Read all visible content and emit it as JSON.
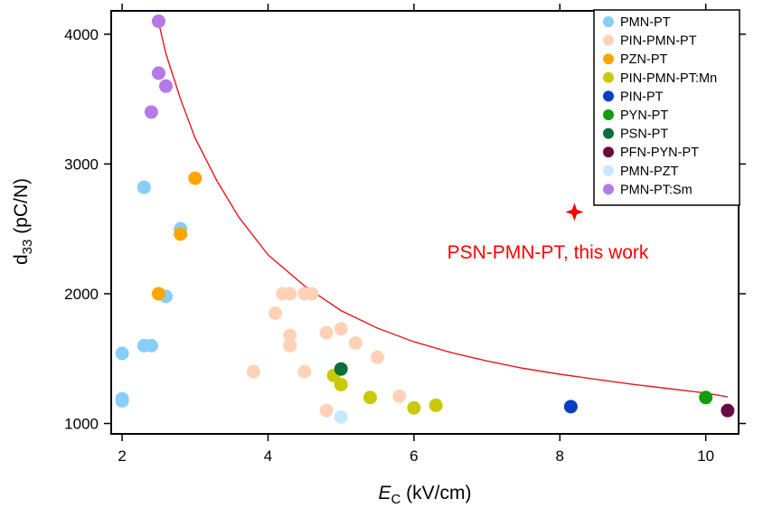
{
  "chart_data": {
    "type": "scatter",
    "xlabel_main": "E",
    "xlabel_sub": "C",
    "xlabel_unit": " (kV/cm)",
    "ylabel_main": "d",
    "ylabel_sub": "33",
    "ylabel_unit": " (pC/N)",
    "xlim": [
      1.85,
      10.45
    ],
    "ylim": [
      920,
      4180
    ],
    "xticks": [
      2,
      4,
      6,
      8,
      10
    ],
    "yticks": [
      1000,
      2000,
      3000,
      4000
    ],
    "legend_position": "top-right",
    "series": [
      {
        "name": "PMN-PT",
        "color": "#87CEFA",
        "points": [
          [
            2.0,
            1190
          ],
          [
            2.0,
            1175
          ],
          [
            2.0,
            1540
          ],
          [
            2.3,
            1600
          ],
          [
            2.4,
            1600
          ],
          [
            2.3,
            2820
          ],
          [
            2.8,
            2500
          ],
          [
            2.6,
            1980
          ]
        ]
      },
      {
        "name": "PIN-PMN-PT",
        "color": "#FFD2B8",
        "points": [
          [
            3.8,
            1400
          ],
          [
            4.1,
            1850
          ],
          [
            4.2,
            2000
          ],
          [
            4.3,
            2000
          ],
          [
            4.5,
            2000
          ],
          [
            4.6,
            2000
          ],
          [
            4.3,
            1680
          ],
          [
            4.3,
            1600
          ],
          [
            4.5,
            1400
          ],
          [
            4.8,
            1700
          ],
          [
            5.0,
            1730
          ],
          [
            5.2,
            1620
          ],
          [
            5.5,
            1510
          ],
          [
            5.8,
            1210
          ],
          [
            4.8,
            1100
          ]
        ]
      },
      {
        "name": "PZN-PT",
        "color": "#FFA500",
        "points": [
          [
            2.5,
            2000
          ],
          [
            2.8,
            2460
          ],
          [
            3.0,
            2890
          ]
        ]
      },
      {
        "name": "PIN-PMN-PT:Mn",
        "color": "#C9C90A",
        "points": [
          [
            4.9,
            1370
          ],
          [
            5.0,
            1300
          ],
          [
            5.4,
            1200
          ],
          [
            6.0,
            1120
          ],
          [
            6.3,
            1140
          ]
        ]
      },
      {
        "name": "PIN-PT",
        "color": "#0A3EC2",
        "points": [
          [
            8.15,
            1130
          ]
        ]
      },
      {
        "name": "PYN-PT",
        "color": "#0E9E0E",
        "points": [
          [
            10.0,
            1200
          ]
        ]
      },
      {
        "name": "PSN-PT",
        "color": "#0E6E3A",
        "points": [
          [
            5.0,
            1420
          ]
        ]
      },
      {
        "name": "PFN-PYN-PT",
        "color": "#6A0A45",
        "points": [
          [
            10.3,
            1100
          ]
        ]
      },
      {
        "name": "PMN-PZT",
        "color": "#C6E8FF",
        "points": [
          [
            5.0,
            1050
          ]
        ]
      },
      {
        "name": "PMN-PT:Sm",
        "color": "#B47AE6",
        "points": [
          [
            2.5,
            4100
          ],
          [
            2.5,
            3700
          ],
          [
            2.6,
            3600
          ],
          [
            2.4,
            3400
          ]
        ]
      }
    ],
    "this_work": {
      "label": "PSN-PMN-PT, this work",
      "color": "#FF0000",
      "x": 8.2,
      "y": 2630
    },
    "trend_curve": {
      "color": "#E8181E",
      "points": [
        [
          2.5,
          4090
        ],
        [
          2.6,
          3850
        ],
        [
          2.8,
          3500
        ],
        [
          3.0,
          3200
        ],
        [
          3.3,
          2870
        ],
        [
          3.6,
          2590
        ],
        [
          4.0,
          2300
        ],
        [
          4.5,
          2060
        ],
        [
          5.0,
          1870
        ],
        [
          5.5,
          1735
        ],
        [
          6.0,
          1630
        ],
        [
          6.5,
          1548
        ],
        [
          7.0,
          1482
        ],
        [
          7.5,
          1425
        ],
        [
          8.0,
          1380
        ],
        [
          8.5,
          1340
        ],
        [
          9.0,
          1302
        ],
        [
          9.5,
          1268
        ],
        [
          10.0,
          1235
        ],
        [
          10.3,
          1205
        ]
      ]
    }
  }
}
